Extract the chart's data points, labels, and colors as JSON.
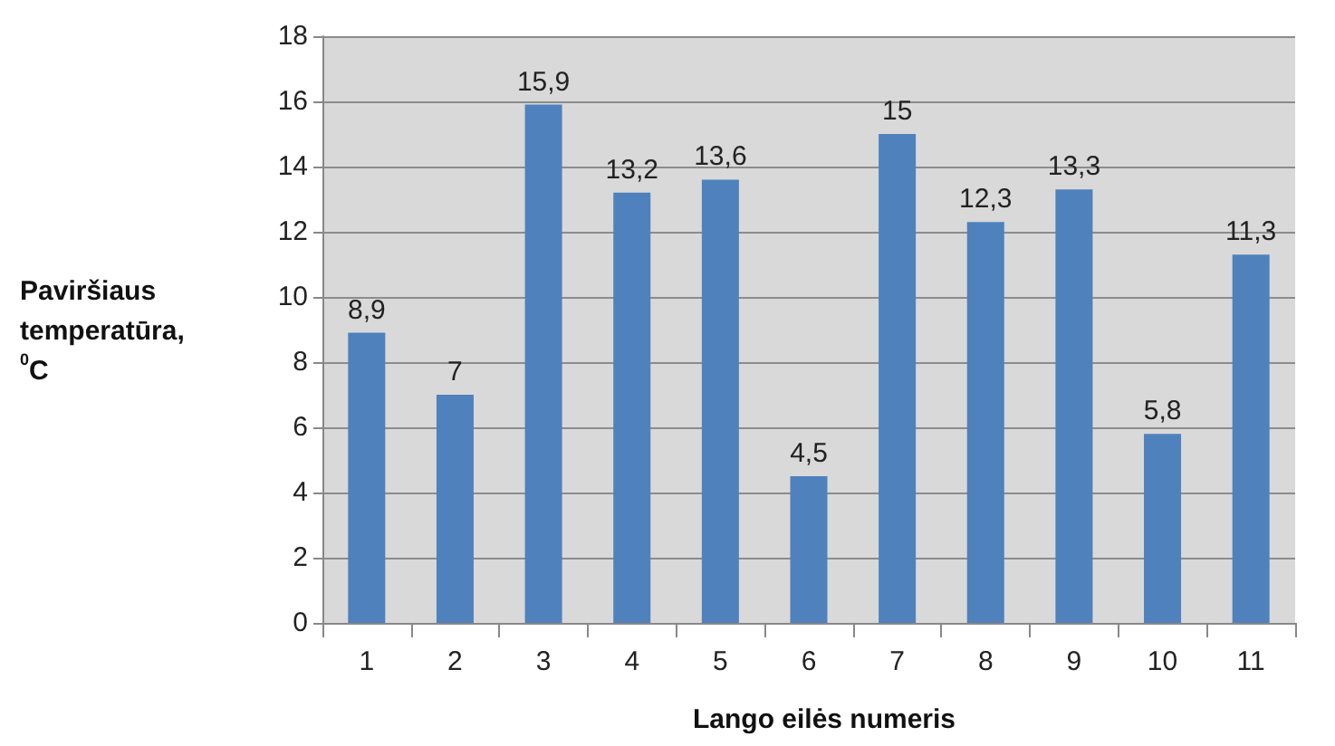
{
  "chart_data": {
    "type": "bar",
    "xlabel": "Lango eilės numeris",
    "ylabel": "Paviršiaus temperatūra, $^{0}$C",
    "categories": [
      "1",
      "2",
      "3",
      "4",
      "5",
      "6",
      "7",
      "8",
      "9",
      "10",
      "11"
    ],
    "values": [
      8.9,
      7,
      15.9,
      13.2,
      13.6,
      4.5,
      15,
      12.3,
      13.3,
      5.8,
      11.3
    ],
    "value_labels": [
      "8,9",
      "7",
      "15,9",
      "13,2",
      "13,6",
      "4,5",
      "15",
      "12,3",
      "13,3",
      "5,8",
      "11,3"
    ],
    "color": "#4f81bd",
    "ylim": [
      0,
      18
    ],
    "yticks": [
      0,
      2,
      4,
      6,
      8,
      10,
      12,
      14,
      16,
      18
    ],
    "grid": "y"
  }
}
